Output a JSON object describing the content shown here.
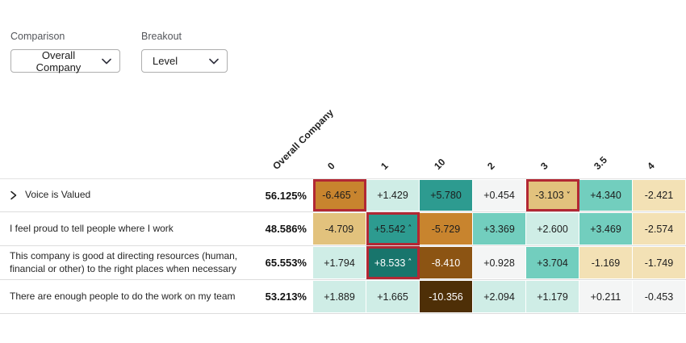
{
  "controls": {
    "comparison": {
      "label": "Comparison",
      "value": "Overall Company"
    },
    "breakout": {
      "label": "Breakout",
      "value": "Level"
    }
  },
  "chart_data": {
    "type": "heatmap",
    "comparison_column": "Overall Company",
    "columns": [
      "0",
      "1",
      "10",
      "2",
      "3",
      "3.5",
      "4"
    ],
    "highlight_border_color": "#B22834",
    "markers": {
      "down": "˅",
      "up": "˄"
    },
    "palette": {
      "teal4": {
        "bg": "#18756C",
        "fg": "#FFFFFF"
      },
      "teal3": {
        "bg": "#2D9B90",
        "fg": "#1D1D1D"
      },
      "teal2": {
        "bg": "#72CEBE",
        "fg": "#1D1D1D"
      },
      "teal1": {
        "bg": "#CFEDE6",
        "fg": "#1D1D1D"
      },
      "neutral": {
        "bg": "#F4F5F5",
        "fg": "#1D1D1D"
      },
      "tan1": {
        "bg": "#F3E1B5",
        "fg": "#1D1D1D"
      },
      "tan2": {
        "bg": "#E2C27D",
        "fg": "#1D1D1D"
      },
      "brown3": {
        "bg": "#C8842E",
        "fg": "#1D1D1D"
      },
      "brown4": {
        "bg": "#8C5413",
        "fg": "#FFFFFF"
      },
      "brown5": {
        "bg": "#4E2F07",
        "fg": "#FFFFFF"
      }
    },
    "rows": [
      {
        "label": "Voice is Valued",
        "expandable": true,
        "overall": "56.125%",
        "cells": [
          {
            "value": "-6.465",
            "marker": "down",
            "highlighted": true,
            "tone": "brown3"
          },
          {
            "value": "+1.429",
            "tone": "teal1"
          },
          {
            "value": "+5.780",
            "tone": "teal3"
          },
          {
            "value": "+0.454",
            "tone": "neutral"
          },
          {
            "value": "-3.103",
            "marker": "down",
            "highlighted": true,
            "tone": "tan2"
          },
          {
            "value": "+4.340",
            "tone": "teal2"
          },
          {
            "value": "-2.421",
            "tone": "tan1"
          }
        ]
      },
      {
        "label": "I feel proud to tell people where I work",
        "expandable": false,
        "overall": "48.586%",
        "cells": [
          {
            "value": "-4.709",
            "tone": "tan2"
          },
          {
            "value": "+5.542",
            "marker": "up",
            "highlighted": true,
            "tone": "teal3"
          },
          {
            "value": "-5.729",
            "tone": "brown3"
          },
          {
            "value": "+3.369",
            "tone": "teal2"
          },
          {
            "value": "+2.600",
            "tone": "teal1"
          },
          {
            "value": "+3.469",
            "tone": "teal2"
          },
          {
            "value": "-2.574",
            "tone": "tan1"
          }
        ]
      },
      {
        "label": "This company is good at directing resources (human, financial or other) to the right places when necessary",
        "expandable": false,
        "overall": "65.553%",
        "cells": [
          {
            "value": "+1.794",
            "tone": "teal1"
          },
          {
            "value": "+8.533",
            "marker": "up",
            "highlighted": true,
            "tone": "teal4"
          },
          {
            "value": "-8.410",
            "tone": "brown4"
          },
          {
            "value": "+0.928",
            "tone": "neutral"
          },
          {
            "value": "+3.704",
            "tone": "teal2"
          },
          {
            "value": "-1.169",
            "tone": "tan1"
          },
          {
            "value": "-1.749",
            "tone": "tan1"
          }
        ]
      },
      {
        "label": "There are enough people to do the work on my team",
        "expandable": false,
        "overall": "53.213%",
        "cells": [
          {
            "value": "+1.889",
            "tone": "teal1"
          },
          {
            "value": "+1.665",
            "tone": "teal1"
          },
          {
            "value": "-10.356",
            "tone": "brown5"
          },
          {
            "value": "+2.094",
            "tone": "teal1"
          },
          {
            "value": "+1.179",
            "tone": "teal1"
          },
          {
            "value": "+0.211",
            "tone": "neutral"
          },
          {
            "value": "-0.453",
            "tone": "neutral"
          }
        ]
      }
    ]
  }
}
